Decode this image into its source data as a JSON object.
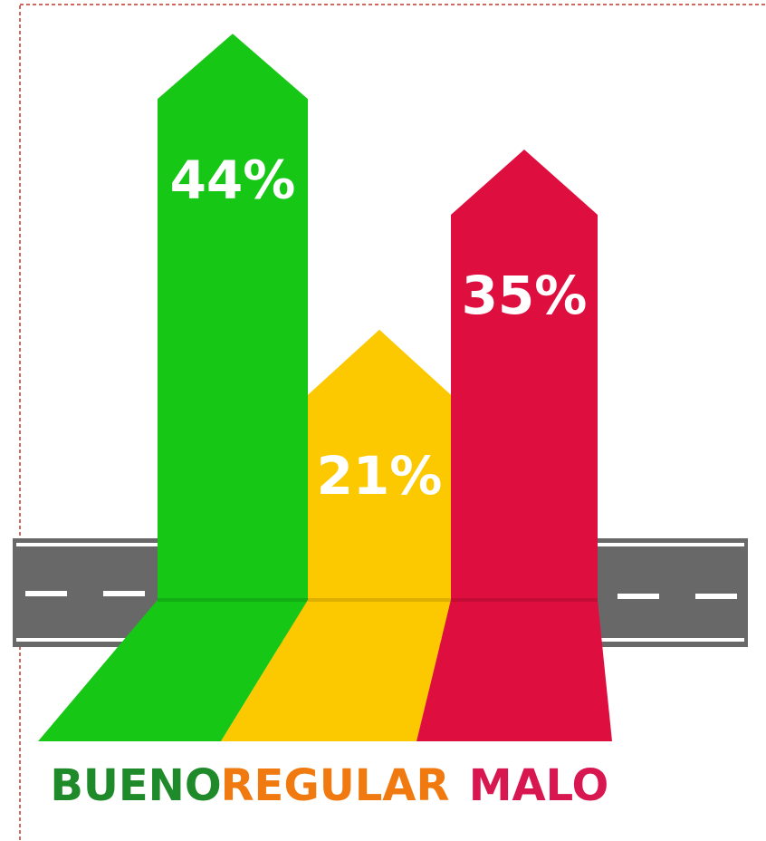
{
  "chart_data": {
    "type": "arrow-bar",
    "categories": [
      "BUENO",
      "REGULAR",
      "MALO"
    ],
    "values": [
      44,
      21,
      35
    ],
    "value_labels": [
      "44%",
      "21%",
      "35%"
    ],
    "colors": [
      "#16c716",
      "#fcc800",
      "#de0f3f"
    ],
    "label_colors": [
      "#1e8a2a",
      "#f07a10",
      "#d81650"
    ]
  }
}
